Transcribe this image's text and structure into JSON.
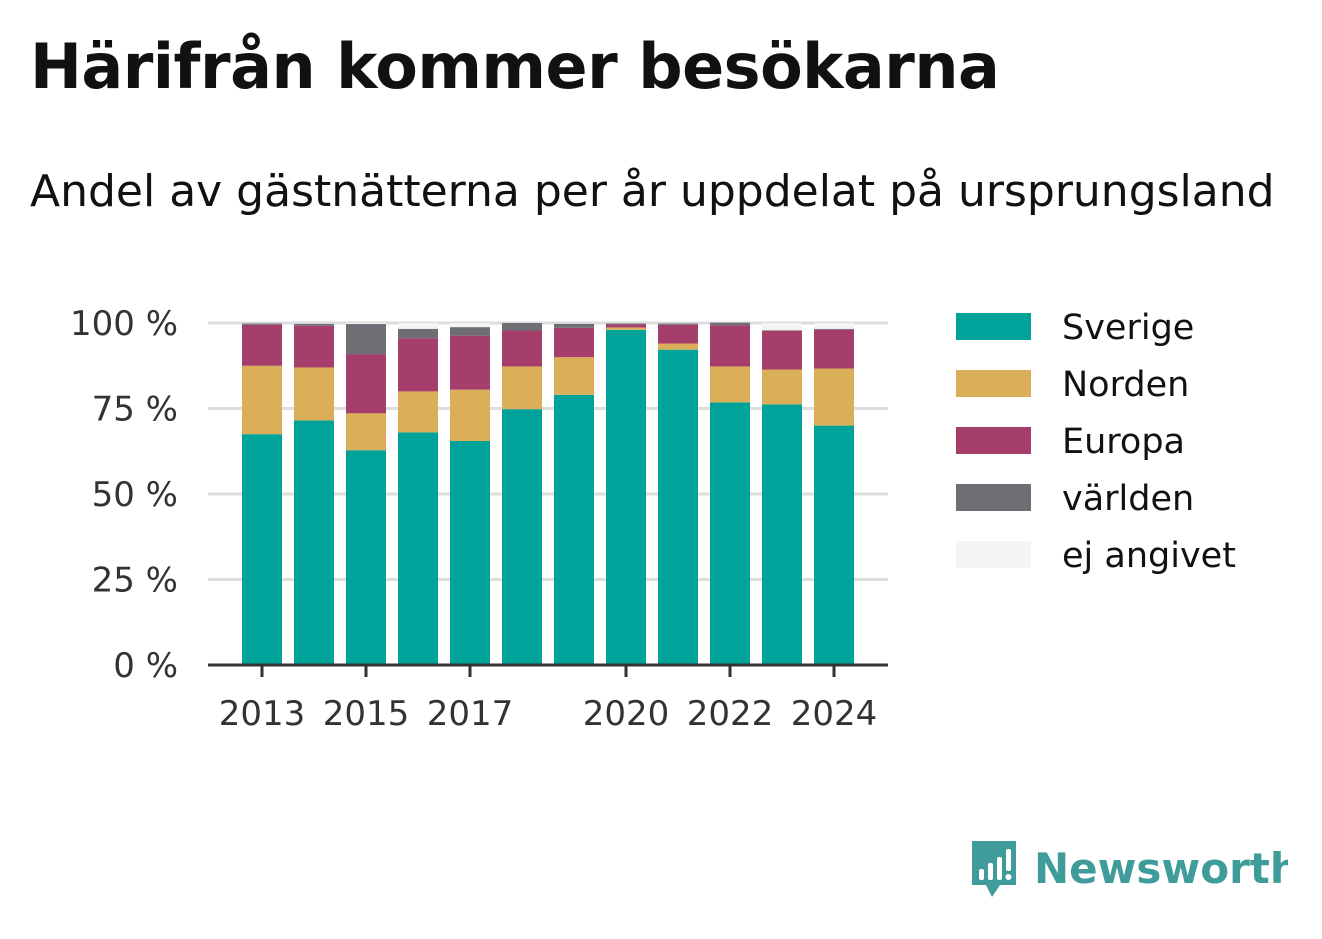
{
  "header": {
    "title": "Härifrån kommer besökarna",
    "subtitle": "Andel av gästnätterna per år uppdelat på ursprungsland"
  },
  "brand": {
    "name": "Newsworthy",
    "color": "#3f9c9a",
    "icon": "bar-chart-speech-bubble-icon"
  },
  "chart_data": {
    "type": "bar",
    "stacked": true,
    "categories": [
      "2013",
      "2014",
      "2015",
      "2016",
      "2017",
      "2018",
      "2019",
      "2020",
      "2021",
      "2022",
      "2023",
      "2024"
    ],
    "x_tick_labels": [
      "2013",
      "",
      "2015",
      "",
      "2017",
      "",
      "",
      "2020",
      "",
      "2022",
      "",
      "2024"
    ],
    "y_ticks": [
      0,
      25,
      50,
      75,
      100
    ],
    "y_tick_labels": [
      "0 %",
      "25 %",
      "50 %",
      "75 %",
      "100 %"
    ],
    "ylim": [
      0,
      100
    ],
    "grid": true,
    "legend_position": "right",
    "series": [
      {
        "name": "Sverige",
        "color": "#00a39a",
        "values": [
          67.5,
          71.5,
          62.8,
          68.0,
          65.5,
          74.8,
          79.0,
          98.0,
          92.2,
          76.8,
          76.2,
          70.0
        ]
      },
      {
        "name": "Norden",
        "color": "#dbaf5a",
        "values": [
          20.0,
          15.5,
          10.8,
          12.0,
          15.0,
          12.5,
          11.0,
          0.7,
          1.8,
          10.5,
          10.2,
          16.7
        ]
      },
      {
        "name": "Europa",
        "color": "#a53e6a",
        "values": [
          12.0,
          12.2,
          17.2,
          15.5,
          15.8,
          10.5,
          8.6,
          0.9,
          5.5,
          12.0,
          11.3,
          11.3
        ]
      },
      {
        "name": "världen",
        "color": "#6f6e75",
        "values": [
          0.4,
          0.6,
          8.9,
          2.8,
          2.5,
          2.2,
          1.2,
          0.3,
          0.4,
          0.8,
          0.2,
          0.3
        ]
      },
      {
        "name": "ej angivet",
        "color": "#f4f4f3",
        "values": [
          0.1,
          0.2,
          0.3,
          1.7,
          1.2,
          0.0,
          0.2,
          0.1,
          0.1,
          0.0,
          2.1,
          1.7
        ]
      }
    ]
  }
}
